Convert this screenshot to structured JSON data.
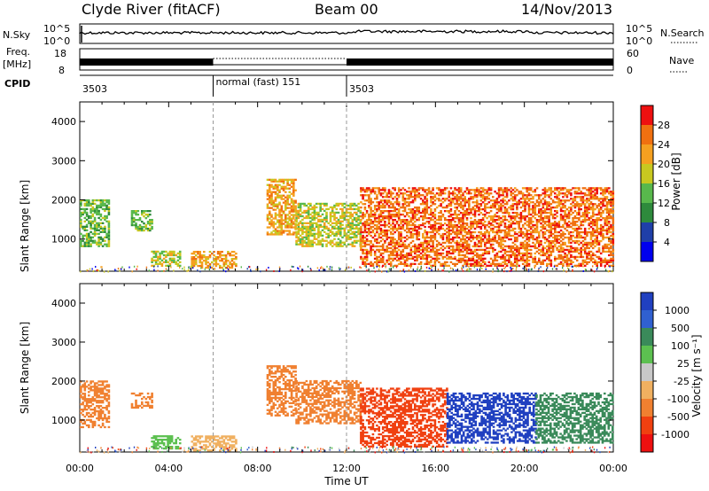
{
  "header": {
    "station": "Clyde River (fitACF)",
    "beam": "Beam 00",
    "date": "14/Nov/2013"
  },
  "strip_panels": {
    "nsky_label": "N.Sky",
    "nsky_ticks": [
      "10^5",
      "10^0"
    ],
    "nsearch_label": "N.Search",
    "nsearch_ticks": [
      "10^5",
      "10^0"
    ],
    "freq_label": "Freq.",
    "freq_unit": "[MHz]",
    "freq_ticks": [
      "18",
      "8"
    ],
    "nave_label": "Nave",
    "nave_ticks": [
      "60",
      "0"
    ],
    "cpid_label": "CPID",
    "cpid_segments": [
      {
        "label": "3503",
        "start": 0.0,
        "end": 6.0
      },
      {
        "label": "normal (fast) 151",
        "start": 6.0,
        "end": 12.0
      },
      {
        "label": "3503",
        "start": 12.0,
        "end": 24.0
      }
    ]
  },
  "chart_data": [
    {
      "type": "heatmap",
      "name": "power",
      "ylabel": "Slant Range [km]",
      "xlabel": "",
      "xlim": [
        0,
        24
      ],
      "ylim": [
        180,
        4500
      ],
      "yticks": [
        "1000",
        "2000",
        "3000",
        "4000"
      ],
      "colorbar": {
        "label": "Power [dB]",
        "ticks": [
          "4",
          "8",
          "12",
          "16",
          "20",
          "24",
          "28"
        ],
        "colors": [
          "#0000ee",
          "#1f3fa8",
          "#2e8a3c",
          "#58b84c",
          "#c8c820",
          "#f5a020",
          "#f07010",
          "#ee1010"
        ]
      },
      "echo_regions": [
        {
          "t0": 0.0,
          "t1": 1.3,
          "r0": 800,
          "r1": 2000,
          "level": 3
        },
        {
          "t0": 2.3,
          "t1": 3.2,
          "r0": 1200,
          "r1": 1700,
          "level": 3
        },
        {
          "t0": 3.2,
          "t1": 4.5,
          "r0": 300,
          "r1": 700,
          "level": 4
        },
        {
          "t0": 5.0,
          "t1": 7.0,
          "r0": 250,
          "r1": 700,
          "level": 5
        },
        {
          "t0": 8.4,
          "t1": 9.7,
          "r0": 1100,
          "r1": 2500,
          "level": 5
        },
        {
          "t0": 9.7,
          "t1": 12.6,
          "r0": 800,
          "r1": 1900,
          "level": 4
        },
        {
          "t0": 12.6,
          "t1": 24.0,
          "r0": 300,
          "r1": 2300,
          "level": 6
        }
      ]
    },
    {
      "type": "heatmap",
      "name": "velocity",
      "ylabel": "Slant Range [km]",
      "xlabel": "Time UT",
      "xlim": [
        0,
        24
      ],
      "ylim": [
        180,
        4500
      ],
      "xticks": [
        "00:00",
        "04:00",
        "08:00",
        "12:00",
        "16:00",
        "20:00",
        "00:00"
      ],
      "yticks": [
        "1000",
        "2000",
        "3000",
        "4000"
      ],
      "colorbar": {
        "label": "Velocity [m s⁻¹]",
        "ticks": [
          "1000",
          "500",
          "100",
          "25",
          "-25",
          "-100",
          "-500",
          "-1000"
        ],
        "colors": [
          "#2040c0",
          "#3060d0",
          "#3a8a5a",
          "#5cc050",
          "#c8c8c8",
          "#f0b060",
          "#f08030",
          "#f04010",
          "#ee1010"
        ]
      },
      "echo_regions": [
        {
          "t0": 0.0,
          "t1": 1.3,
          "r0": 800,
          "r1": 2000,
          "level": 6
        },
        {
          "t0": 2.3,
          "t1": 3.2,
          "r0": 1300,
          "r1": 1700,
          "level": 6
        },
        {
          "t0": 3.2,
          "t1": 4.5,
          "r0": 250,
          "r1": 600,
          "level": 3
        },
        {
          "t0": 5.0,
          "t1": 7.0,
          "r0": 200,
          "r1": 600,
          "level": 5
        },
        {
          "t0": 8.4,
          "t1": 9.7,
          "r0": 1100,
          "r1": 2400,
          "level": 6
        },
        {
          "t0": 9.7,
          "t1": 12.6,
          "r0": 900,
          "r1": 2000,
          "level": 6
        },
        {
          "t0": 12.6,
          "t1": 16.5,
          "r0": 300,
          "r1": 1800,
          "level": 7
        },
        {
          "t0": 16.5,
          "t1": 20.5,
          "r0": 400,
          "r1": 1700,
          "level": 0
        },
        {
          "t0": 20.5,
          "t1": 24.0,
          "r0": 400,
          "r1": 1700,
          "level": 2
        }
      ]
    }
  ]
}
